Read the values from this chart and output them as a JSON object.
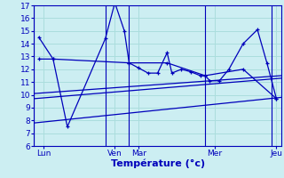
{
  "background_color": "#cceef2",
  "grid_color": "#aadddd",
  "line_color": "#0000bb",
  "xlabel": "Température (°c)",
  "xlabel_fontsize": 8,
  "tick_fontsize": 6.5,
  "ylim": [
    6,
    17
  ],
  "yticks": [
    6,
    7,
    8,
    9,
    10,
    11,
    12,
    13,
    14,
    15,
    16,
    17
  ],
  "xlim": [
    0,
    26
  ],
  "day_tick_positions": [
    1,
    8.5,
    11,
    19,
    25.5
  ],
  "day_labels": [
    "Lun",
    "Ven",
    "Mar",
    "Mer",
    "Jeu"
  ],
  "day_vline_positions": [
    0,
    7.5,
    10,
    18,
    25
  ],
  "series1_x": [
    0.5,
    2,
    3.5,
    7.5,
    8.5,
    9.5,
    10,
    11,
    12,
    13,
    14,
    14.5,
    15.5,
    16.5,
    17.5,
    18,
    18.5,
    19.5,
    20.5,
    22,
    23.5,
    24.5,
    25.5
  ],
  "series1_y": [
    14.5,
    12.8,
    7.5,
    14.4,
    17.2,
    15.0,
    12.5,
    12.1,
    11.7,
    11.7,
    13.3,
    11.7,
    12.0,
    11.8,
    11.5,
    11.5,
    11.1,
    11.1,
    12.0,
    14.0,
    15.1,
    12.5,
    9.7
  ],
  "series2_x": [
    0.5,
    2,
    10,
    14,
    18,
    22,
    25.5
  ],
  "series2_y": [
    12.8,
    12.8,
    12.5,
    12.5,
    11.5,
    12.0,
    9.7
  ],
  "trend1_x": [
    0,
    26
  ],
  "trend1_y": [
    9.7,
    11.3
  ],
  "trend2_x": [
    0,
    26
  ],
  "trend2_y": [
    10.1,
    11.5
  ],
  "trend3_x": [
    0,
    26
  ],
  "trend3_y": [
    7.8,
    9.8
  ]
}
